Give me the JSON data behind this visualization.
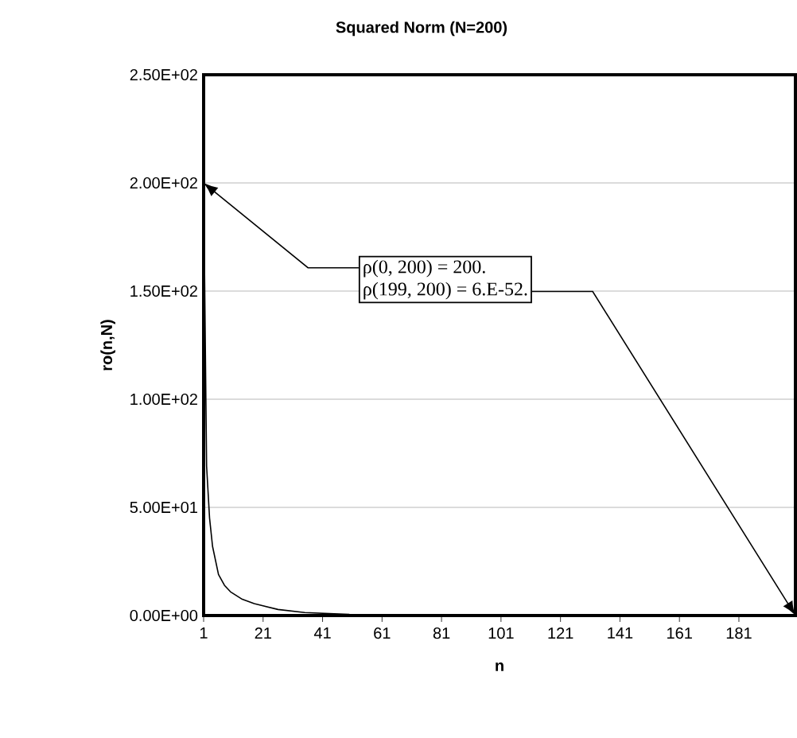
{
  "chart_data": {
    "type": "line",
    "title": "Squared Norm (N=200)",
    "xlabel": "n",
    "ylabel": "ro(n,N)",
    "x": [
      1,
      2,
      3,
      4,
      6,
      8,
      10,
      14,
      18,
      26,
      35,
      50,
      70,
      100,
      150,
      200
    ],
    "values": [
      200,
      69,
      45,
      32,
      19,
      14,
      11,
      7.5,
      5.5,
      2.8,
      1.4,
      0.5,
      0.1,
      0,
      0,
      0
    ],
    "color": "#000000",
    "marker": "none",
    "line_style": "solid",
    "grid": "y",
    "xlim": [
      1,
      200
    ],
    "xticks": [
      1,
      21,
      41,
      61,
      81,
      101,
      121,
      141,
      161,
      181
    ],
    "ylim": [
      0,
      250
    ],
    "yticks": [
      {
        "value": 0,
        "label": "0.00E+00"
      },
      {
        "value": 50,
        "label": "5.00E+01"
      },
      {
        "value": 100,
        "label": "1.00E+02"
      },
      {
        "value": 150,
        "label": "1.50E+02"
      },
      {
        "value": 200,
        "label": "2.00E+02"
      },
      {
        "value": 250,
        "label": "2.50E+02"
      }
    ],
    "annotations": [
      {
        "text": "ρ(0, 200) = 200.",
        "x": 1,
        "y": 200
      },
      {
        "text": "ρ(199, 200) = 6.E-52.",
        "x": 200,
        "y": 0
      }
    ]
  }
}
